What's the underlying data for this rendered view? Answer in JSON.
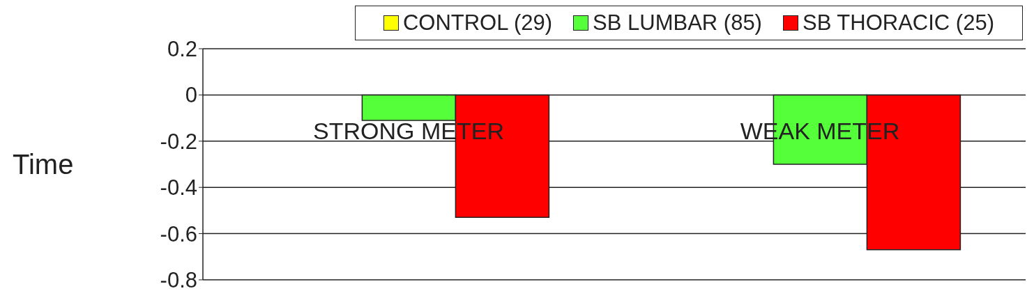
{
  "chart_data": {
    "type": "bar",
    "ylabel": "Time",
    "categories": [
      "STRONG METER",
      "WEAK METER"
    ],
    "series": [
      {
        "name": "CONTROL (29)",
        "color": "#ffff00",
        "values": [
          0,
          0
        ]
      },
      {
        "name": "SB LUMBAR (85)",
        "color": "#55ff3a",
        "values": [
          -0.11,
          -0.3
        ]
      },
      {
        "name": "SB THORACIC (25)",
        "color": "#ff0000",
        "values": [
          -0.53,
          -0.67
        ]
      }
    ],
    "ylim": [
      -0.8,
      0.2
    ],
    "yticks": [
      -0.8,
      -0.6,
      -0.4,
      -0.2,
      0,
      0.2
    ],
    "grid": "y",
    "legend": "top right"
  }
}
